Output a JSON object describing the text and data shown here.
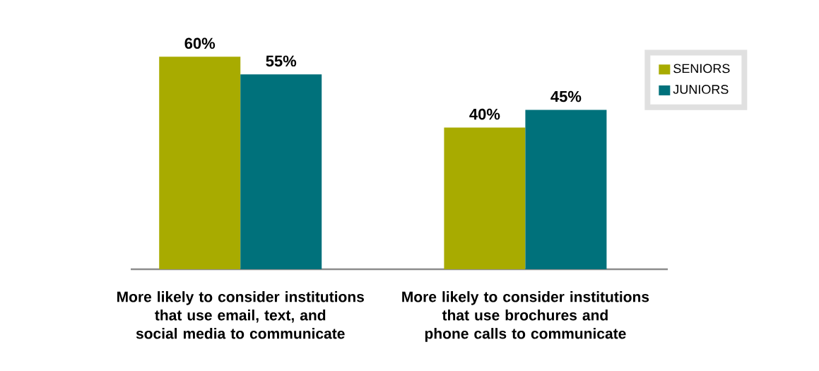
{
  "chart_data": {
    "type": "bar",
    "categories": [
      "More likely to consider institutions that use email, text, and social media to communicate",
      "More likely to consider institutions that use brochures and phone calls to communicate"
    ],
    "series": [
      {
        "name": "SENIORS",
        "color": "#a8ab00",
        "values": [
          60,
          40
        ],
        "value_labels": [
          "60%",
          "40%"
        ]
      },
      {
        "name": "JUNIORS",
        "color": "#00717b",
        "values": [
          55,
          45
        ],
        "value_labels": [
          "55%",
          "45%"
        ]
      }
    ],
    "legend": "top right"
  }
}
